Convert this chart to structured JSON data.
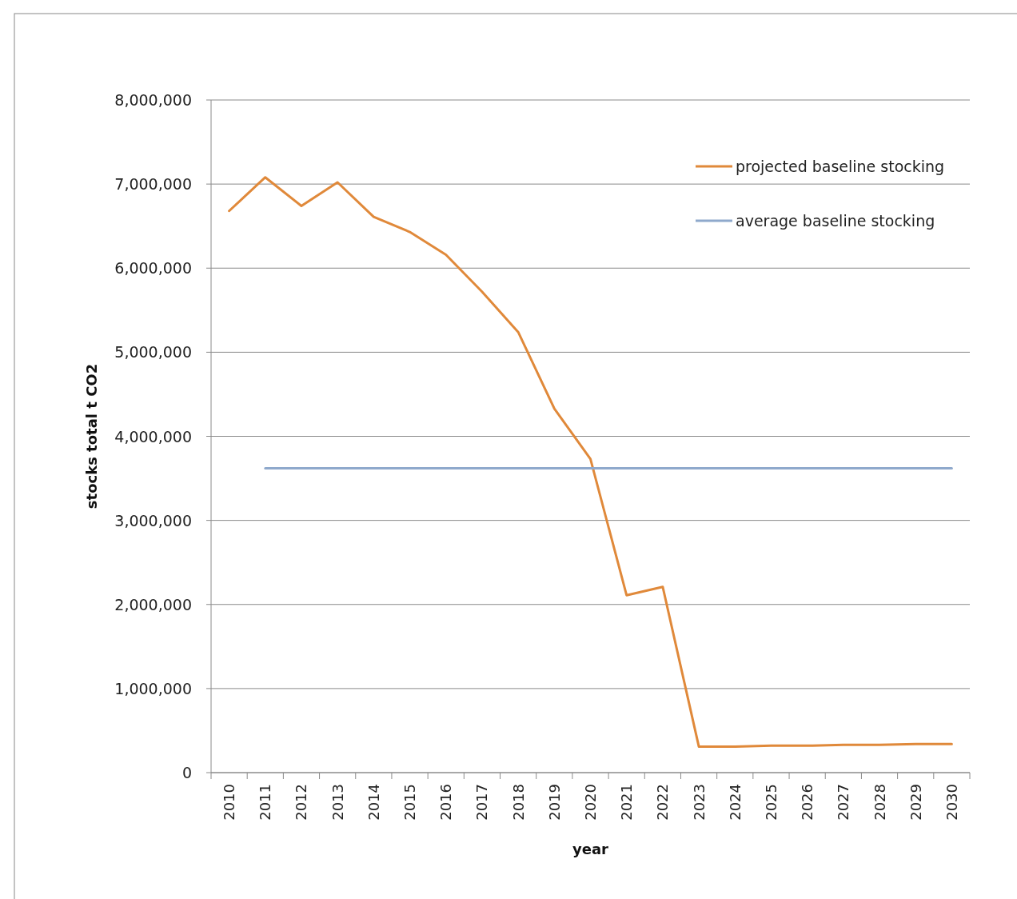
{
  "chart_data": {
    "type": "line",
    "ylabel": "stocks total t CO2",
    "xlabel": "year",
    "categories": [
      "2010",
      "2011",
      "2012",
      "2013",
      "2014",
      "2015",
      "2016",
      "2017",
      "2018",
      "2019",
      "2020",
      "2021",
      "2022",
      "2023",
      "2024",
      "2025",
      "2026",
      "2027",
      "2028",
      "2029",
      "2030"
    ],
    "series": [
      {
        "name": "projected baseline stocking",
        "color": "#e0893a",
        "values": [
          6680000,
          7080000,
          6740000,
          7020000,
          6610000,
          6430000,
          6160000,
          5720000,
          5240000,
          4330000,
          3730000,
          2110000,
          2210000,
          310000,
          310000,
          320000,
          320000,
          330000,
          330000,
          340000,
          340000
        ]
      },
      {
        "name": "average baseline stocking",
        "color": "#8fa9cc",
        "values": [
          null,
          3620000,
          3620000,
          3620000,
          3620000,
          3620000,
          3620000,
          3620000,
          3620000,
          3620000,
          3620000,
          3620000,
          3620000,
          3620000,
          3620000,
          3620000,
          3620000,
          3620000,
          3620000,
          3620000,
          3620000
        ]
      }
    ],
    "ylim": [
      0,
      8000000
    ],
    "yticks": [
      {
        "value": 0,
        "label": "0"
      },
      {
        "value": 1000000,
        "label": "1,000,000"
      },
      {
        "value": 2000000,
        "label": "2,000,000"
      },
      {
        "value": 3000000,
        "label": "3,000,000"
      },
      {
        "value": 4000000,
        "label": "4,000,000"
      },
      {
        "value": 5000000,
        "label": "5,000,000"
      },
      {
        "value": 6000000,
        "label": "6,000,000"
      },
      {
        "value": 7000000,
        "label": "7,000,000"
      },
      {
        "value": 8000000,
        "label": "8,000,000"
      }
    ],
    "grid": "y",
    "legend": "top right",
    "marker": "none",
    "line_style": "solid"
  }
}
